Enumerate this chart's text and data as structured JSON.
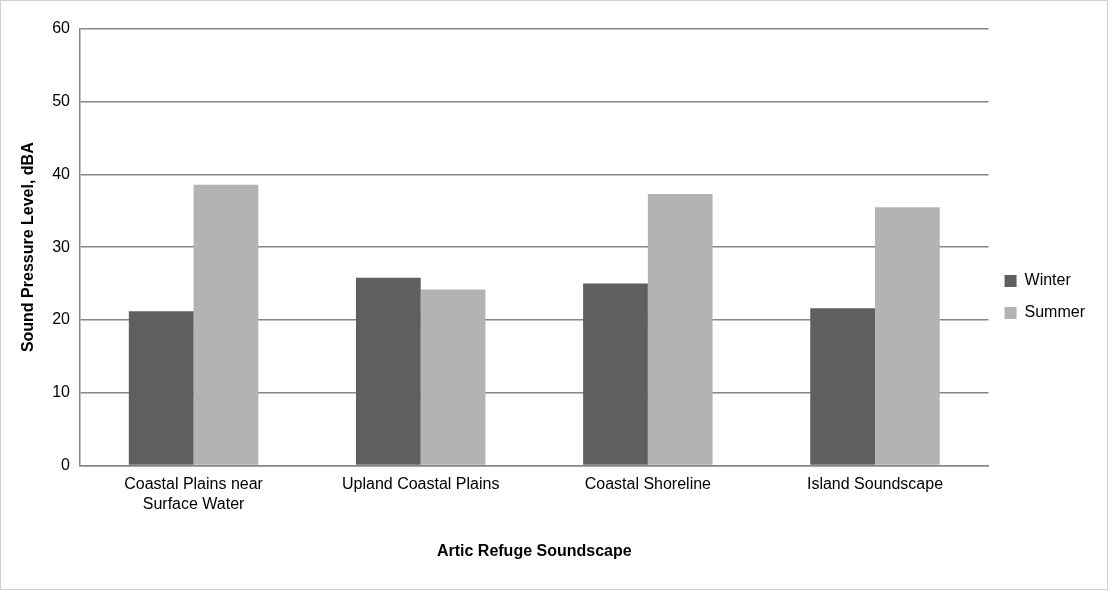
{
  "chart_data": {
    "type": "bar",
    "xlabel": "Artic Refuge Soundscape",
    "ylabel": "Sound Pressure Level, dBA",
    "categories": [
      "Coastal Plains near Surface Water",
      "Upland Coastal Plains",
      "Coastal Shoreline",
      "Island Soundscape"
    ],
    "series": [
      {
        "name": "Winter",
        "color": "#5f5f5f",
        "values": [
          21.2,
          25.8,
          25.0,
          21.6
        ]
      },
      {
        "name": "Summer",
        "color": "#b3b3b3",
        "values": [
          38.6,
          24.2,
          37.3,
          35.5
        ]
      }
    ],
    "ylim": [
      0,
      60
    ],
    "yticks": [
      0,
      10,
      20,
      30,
      40,
      50,
      60
    ],
    "grid": "y",
    "legend": "right"
  }
}
